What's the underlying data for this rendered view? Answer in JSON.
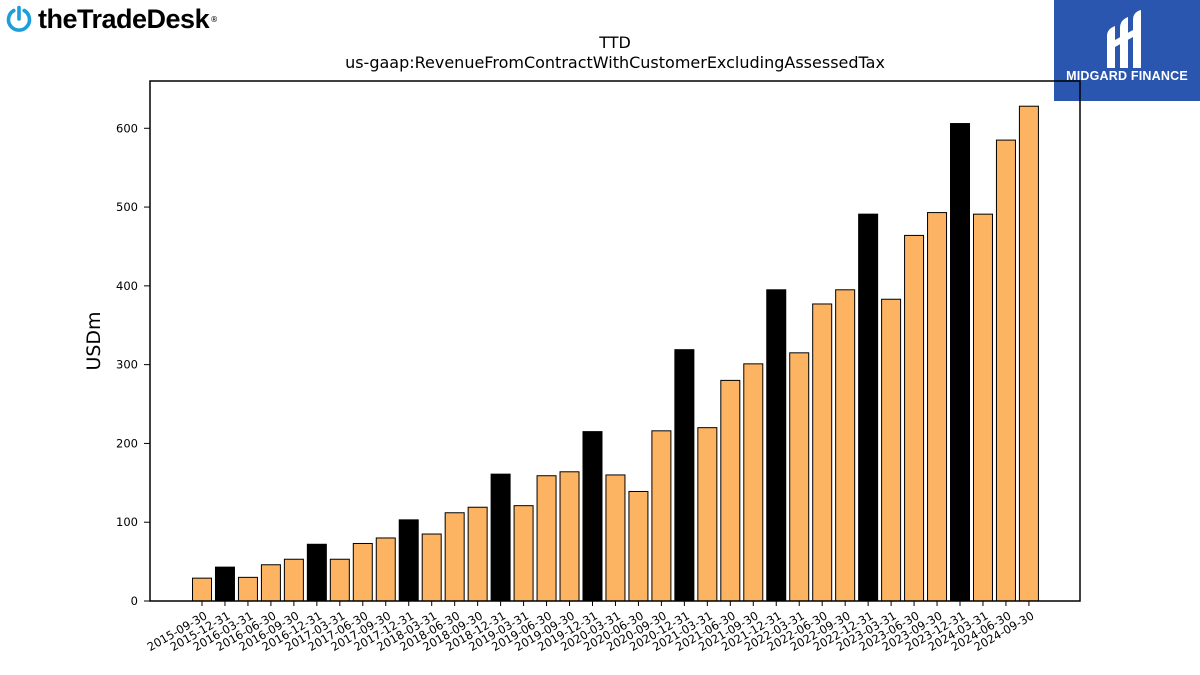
{
  "branding": {
    "left_logo_text": "theTradeDesk",
    "left_logo_icon": "power-icon",
    "left_logo_color": "#1a9fd9",
    "right_logo_text": "MIDGARD FINANCE",
    "right_logo_icon": "midgard-m-icon",
    "right_logo_bg": "#2b56b0"
  },
  "chart_data": {
    "type": "bar",
    "title": "TTD",
    "subtitle": "us-gaap:RevenueFromContractWithCustomerExcludingAssessedTax",
    "xlabel": "",
    "ylabel": "USDm",
    "ylim": [
      0,
      660
    ],
    "yticks": [
      0,
      100,
      200,
      300,
      400,
      500,
      600
    ],
    "grid": false,
    "legend": "none",
    "colors": {
      "quarter": "#fdb462",
      "fiscal_year_end": "#000000",
      "edge": "#000000"
    },
    "categories": [
      "2015-09-30",
      "2015-12-31",
      "2016-03-31",
      "2016-06-30",
      "2016-09-30",
      "2016-12-31",
      "2017-03-31",
      "2017-06-30",
      "2017-09-30",
      "2017-12-31",
      "2018-03-31",
      "2018-06-30",
      "2018-09-30",
      "2018-12-31",
      "2019-03-31",
      "2019-06-30",
      "2019-09-30",
      "2019-12-31",
      "2020-03-31",
      "2020-06-30",
      "2020-09-30",
      "2020-12-31",
      "2021-03-31",
      "2021-06-30",
      "2021-09-30",
      "2021-12-31",
      "2022-03-31",
      "2022-06-30",
      "2022-09-30",
      "2022-12-31",
      "2023-03-31",
      "2023-06-30",
      "2023-09-30",
      "2023-12-31",
      "2024-03-31",
      "2024-06-30",
      "2024-09-30"
    ],
    "values": [
      29,
      43,
      30,
      46,
      53,
      72,
      53,
      73,
      80,
      103,
      85,
      112,
      119,
      161,
      121,
      159,
      164,
      215,
      160,
      139,
      216,
      319,
      220,
      280,
      301,
      395,
      315,
      377,
      395,
      491,
      383,
      464,
      493,
      606,
      491,
      585,
      628
    ],
    "fiscal_year_end": [
      false,
      true,
      false,
      false,
      false,
      true,
      false,
      false,
      false,
      true,
      false,
      false,
      false,
      true,
      false,
      false,
      false,
      true,
      false,
      false,
      false,
      true,
      false,
      false,
      false,
      true,
      false,
      false,
      false,
      true,
      false,
      false,
      false,
      true,
      false,
      false,
      false
    ]
  }
}
